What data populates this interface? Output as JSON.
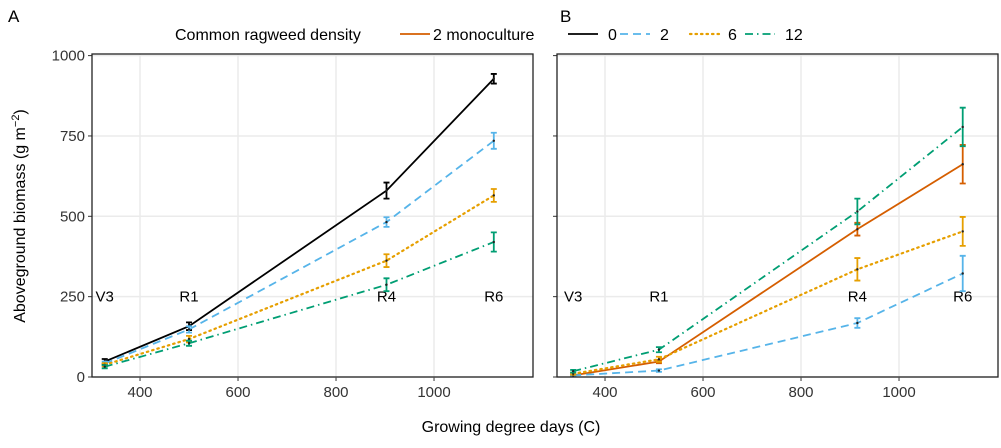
{
  "legend": {
    "title": "Common ragweed density",
    "position": "top"
  },
  "axes": {
    "xlabel": "Growing degree days (C)",
    "ylabel": "Aboveground biomass (g m",
    "ylabel_sup": "−2",
    "ylabel_end": ")"
  },
  "chart_data": [
    {
      "type": "line",
      "panel": "A",
      "xlim": [
        302,
        1202
      ],
      "ylim": [
        0,
        1005
      ],
      "grid": true,
      "xticks": [
        400,
        600,
        800,
        1000
      ],
      "yticks": [
        0,
        250,
        500,
        750,
        1000
      ],
      "stages": [
        {
          "label": "V3",
          "x": 328
        },
        {
          "label": "R1",
          "x": 500
        },
        {
          "label": "R4",
          "x": 903
        },
        {
          "label": "R6",
          "x": 1122
        }
      ],
      "series": [
        {
          "name": "0",
          "color": "#000000",
          "dash": "solid",
          "x": [
            328,
            500,
            903,
            1122
          ],
          "y": [
            48,
            158,
            580,
            928
          ],
          "err": [
            8,
            12,
            25,
            15
          ]
        },
        {
          "name": "2",
          "color": "#56B4E9",
          "dash": "dashed",
          "x": [
            328,
            500,
            903,
            1122
          ],
          "y": [
            42,
            148,
            482,
            735
          ],
          "err": [
            6,
            10,
            15,
            25
          ]
        },
        {
          "name": "6",
          "color": "#E69F00",
          "dash": "dotted",
          "x": [
            328,
            500,
            903,
            1122
          ],
          "y": [
            38,
            118,
            362,
            565
          ],
          "err": [
            5,
            10,
            20,
            20
          ]
        },
        {
          "name": "12",
          "color": "#009E73",
          "dash": "dotdash",
          "x": [
            328,
            500,
            903,
            1122
          ],
          "y": [
            32,
            105,
            287,
            420
          ],
          "err": [
            5,
            8,
            20,
            30
          ]
        }
      ]
    },
    {
      "type": "line",
      "panel": "B",
      "xlim": [
        302,
        1202
      ],
      "ylim": [
        0,
        1005
      ],
      "grid": true,
      "xticks": [
        400,
        600,
        800,
        1000
      ],
      "yticks": [
        0,
        250,
        500,
        750,
        1000
      ],
      "stages": [
        {
          "label": "V3",
          "x": 335
        },
        {
          "label": "R1",
          "x": 510
        },
        {
          "label": "R4",
          "x": 915
        },
        {
          "label": "R6",
          "x": 1130
        }
      ],
      "series": [
        {
          "name": "2 monoculture",
          "color": "#D55E00",
          "dash": "solid",
          "x": [
            335,
            510,
            915,
            1130
          ],
          "y": [
            5,
            48,
            460,
            662
          ],
          "err": [
            3,
            5,
            20,
            60
          ]
        },
        {
          "name": "2",
          "color": "#56B4E9",
          "dash": "dashed",
          "x": [
            335,
            510,
            915,
            1130
          ],
          "y": [
            5,
            20,
            168,
            322
          ],
          "err": [
            3,
            4,
            15,
            55
          ]
        },
        {
          "name": "6",
          "color": "#E69F00",
          "dash": "dotted",
          "x": [
            335,
            510,
            915,
            1130
          ],
          "y": [
            10,
            55,
            335,
            453
          ],
          "err": [
            3,
            8,
            35,
            45
          ]
        },
        {
          "name": "12",
          "color": "#009E73",
          "dash": "dotdash",
          "x": [
            335,
            510,
            915,
            1130
          ],
          "y": [
            18,
            85,
            515,
            778
          ],
          "err": [
            4,
            8,
            40,
            60
          ]
        }
      ]
    }
  ],
  "legend_items": [
    {
      "name": "2 monoculture",
      "color": "#D55E00",
      "dash": "solid"
    },
    {
      "name": "0",
      "color": "#000000",
      "dash": "solid"
    },
    {
      "name": "2",
      "color": "#56B4E9",
      "dash": "dashed"
    },
    {
      "name": "6",
      "color": "#E69F00",
      "dash": "dotted"
    },
    {
      "name": "12",
      "color": "#009E73",
      "dash": "dotdash"
    }
  ]
}
